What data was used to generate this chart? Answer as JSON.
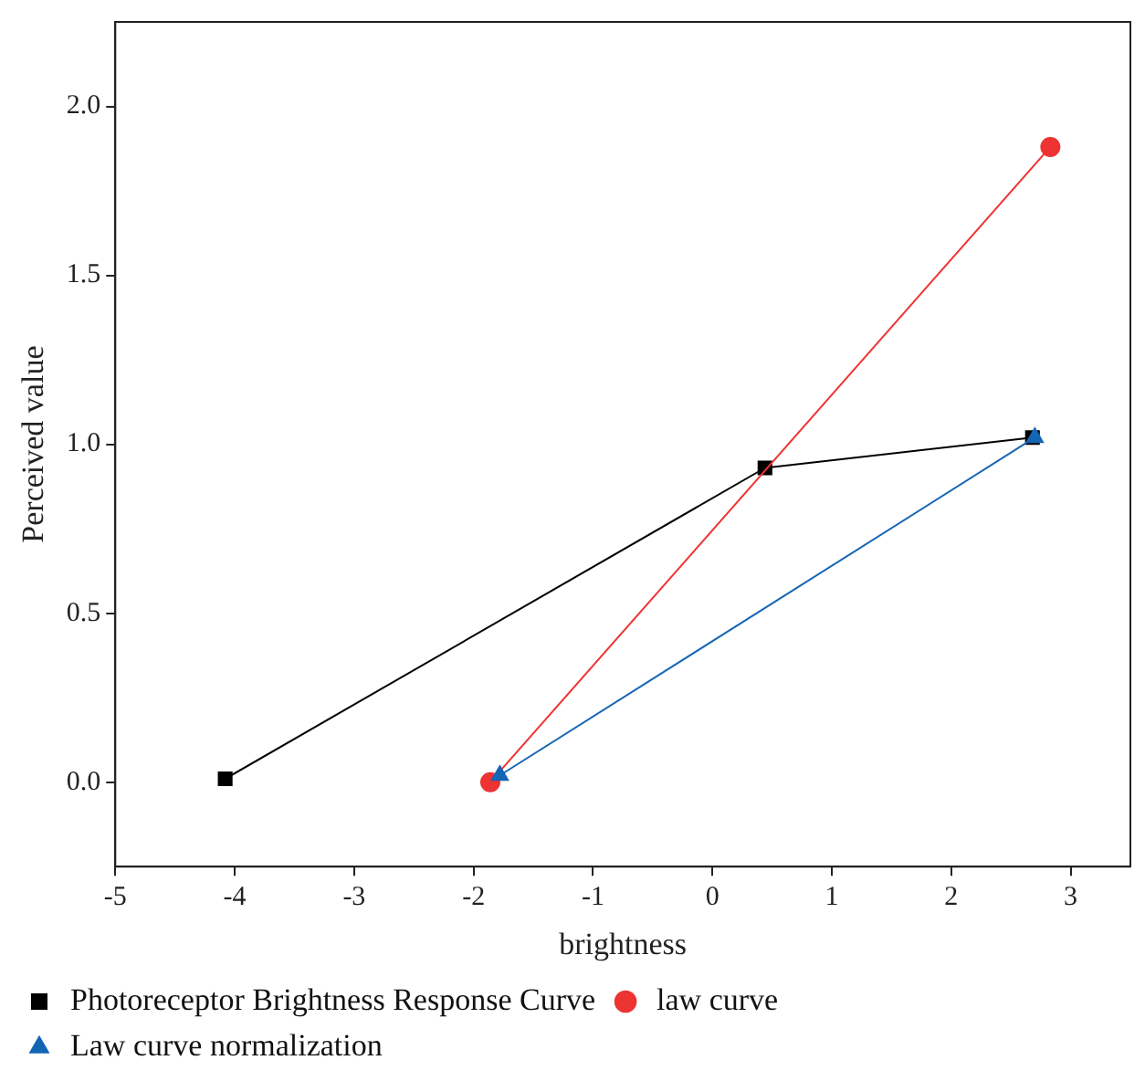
{
  "chart_data": {
    "type": "line",
    "xlabel": "brightness",
    "ylabel": "Perceived value",
    "xlim": [
      -5,
      3.5
    ],
    "xticks": [
      -5,
      -4,
      -3,
      -2,
      -1,
      0,
      1,
      2,
      3
    ],
    "ylim": [
      -0.25,
      2.25
    ],
    "yticks": [
      {
        "value": 0,
        "label": "0.0"
      },
      {
        "value": 0.5,
        "label": "0.5"
      },
      {
        "value": 1,
        "label": "1.0"
      },
      {
        "value": 1.5,
        "label": "1.5"
      },
      {
        "value": 2,
        "label": "2.0"
      }
    ],
    "grid": false,
    "legend": "bottom",
    "line_style": "solid",
    "series": [
      {
        "name": "Photoreceptor Brightness Response Curve",
        "color": "#000000",
        "marker": "square",
        "x": [
          -4.08,
          0.44,
          2.68
        ],
        "values": [
          0.01,
          0.93,
          1.02
        ]
      },
      {
        "name": "law curve",
        "color": "#ee3333",
        "marker": "circle",
        "x": [
          -1.86,
          2.83
        ],
        "values": [
          0,
          1.88
        ]
      },
      {
        "name": "Law curve normalization",
        "color": "#1565b5",
        "marker": "triangle",
        "x": [
          -1.78,
          2.7
        ],
        "values": [
          0.02,
          1.02
        ]
      }
    ]
  }
}
